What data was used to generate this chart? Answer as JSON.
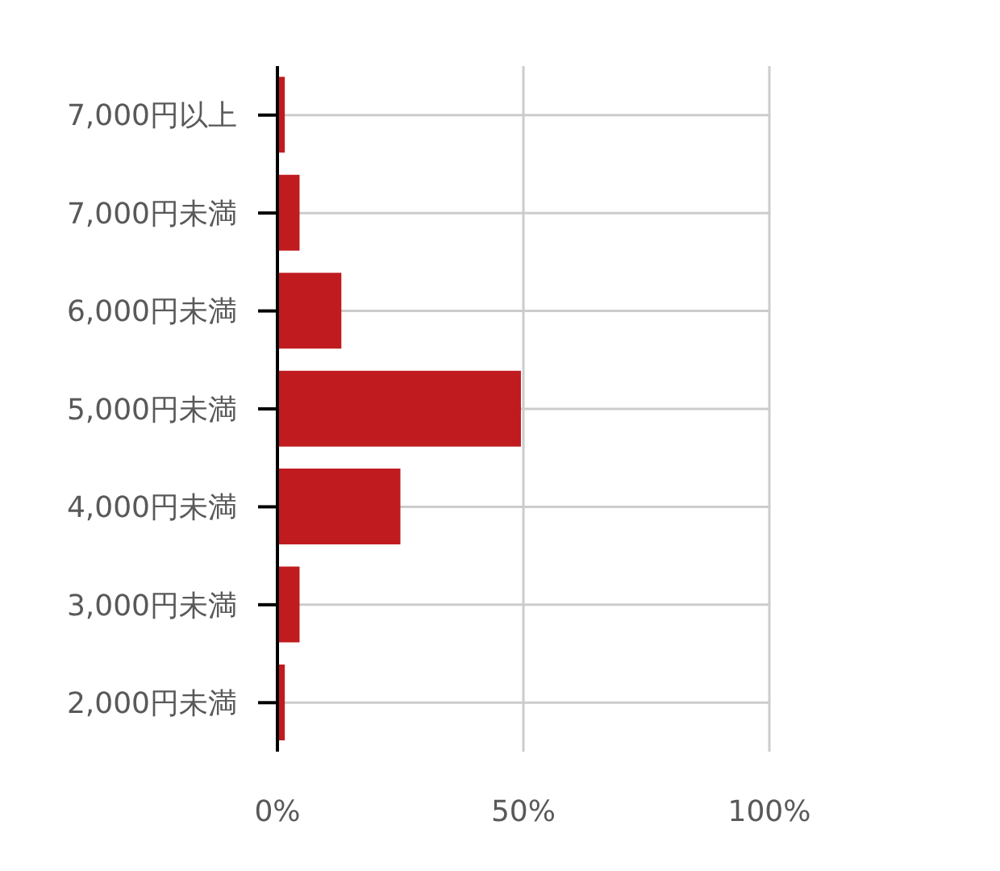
{
  "chart_data": {
    "type": "bar",
    "orientation": "horizontal",
    "categories": [
      "7,000円以上",
      "7,000円未満",
      "6,000円未満",
      "5,000円未満",
      "4,000円未満",
      "3,000円未満",
      "2,000円未満"
    ],
    "values": [
      1.5,
      4.5,
      13,
      49.5,
      25,
      4.5,
      1.5
    ],
    "color": "#c01b1f",
    "xlim": [
      0,
      100
    ],
    "xticks": [
      {
        "value": 0,
        "label": "0%"
      },
      {
        "value": 50,
        "label": "50%"
      },
      {
        "value": 100,
        "label": "100%"
      }
    ],
    "grid": true
  }
}
